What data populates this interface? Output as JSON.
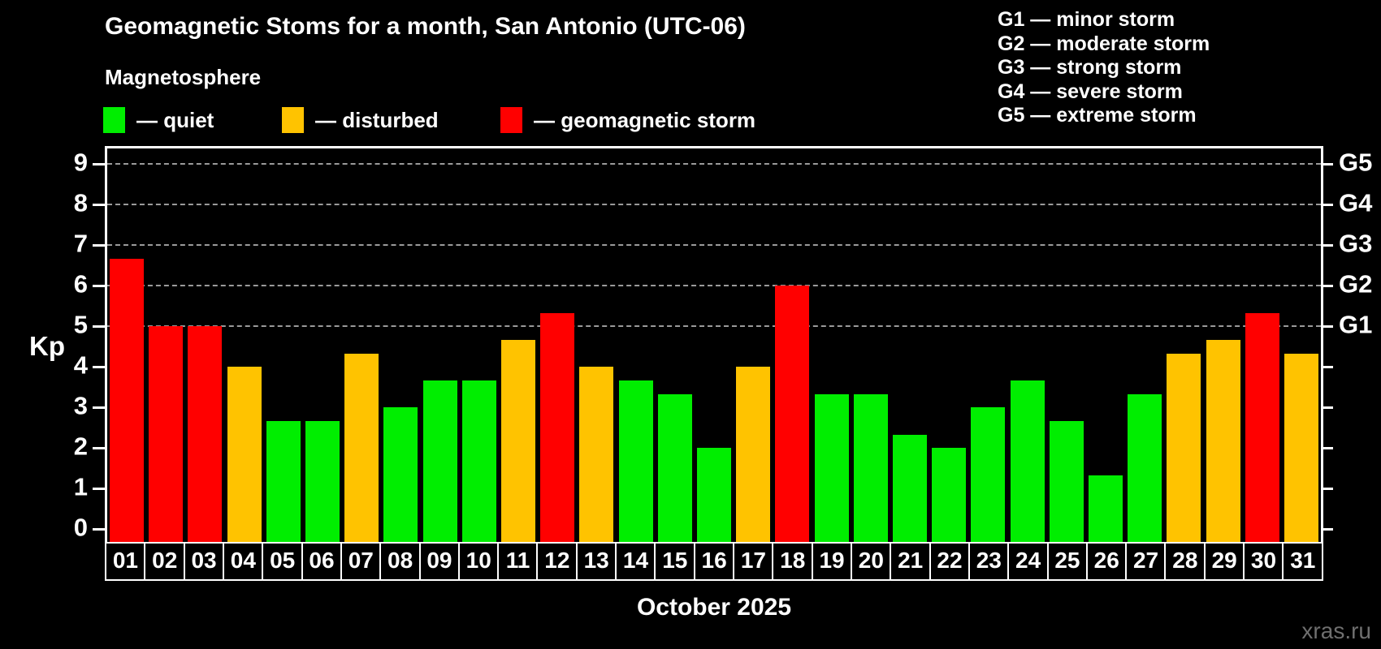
{
  "header": {
    "title": "Geomagnetic Stoms for a month, San Antonio (UTC-06)"
  },
  "legend": {
    "title": "Magnetosphere",
    "items": [
      {
        "label": "— quiet",
        "status": "quiet",
        "color": "#00ee00"
      },
      {
        "label": "— disturbed",
        "status": "disturbed",
        "color": "#ffc300"
      },
      {
        "label": "— geomagnetic storm",
        "status": "storm",
        "color": "#ff0000"
      }
    ]
  },
  "storm_scale_legend": {
    "lines": [
      "G1 — minor storm",
      "G2 — moderate storm",
      "G3 — strong storm",
      "G4 — severe storm",
      "G5 — extreme storm"
    ]
  },
  "axes": {
    "y_label": "Kp",
    "y_ticks": [
      0,
      1,
      2,
      3,
      4,
      5,
      6,
      7,
      8,
      9
    ],
    "gridlines_at": [
      5,
      6,
      7,
      8,
      9
    ],
    "right_labels": [
      {
        "label": "G1",
        "kp": 5
      },
      {
        "label": "G2",
        "kp": 6
      },
      {
        "label": "G3",
        "kp": 7
      },
      {
        "label": "G4",
        "kp": 8
      },
      {
        "label": "G5",
        "kp": 9
      }
    ],
    "x_month_label": "October 2025"
  },
  "watermark": "xras.ru",
  "chart_data": {
    "type": "bar",
    "title": "Geomagnetic Stoms for a month, San Antonio (UTC-06)",
    "xlabel": "October 2025",
    "ylabel": "Kp",
    "ylim": [
      -0.34,
      9.4
    ],
    "grid": "dashed horizontal at Kp 5-9 only",
    "legend_position": "top",
    "categories": [
      "01",
      "02",
      "03",
      "04",
      "05",
      "06",
      "07",
      "08",
      "09",
      "10",
      "11",
      "12",
      "13",
      "14",
      "15",
      "16",
      "17",
      "18",
      "19",
      "20",
      "21",
      "22",
      "23",
      "24",
      "25",
      "26",
      "27",
      "28",
      "29",
      "30",
      "31"
    ],
    "values": [
      6.67,
      5.0,
      5.0,
      4.0,
      2.67,
      2.67,
      4.33,
      3.0,
      3.67,
      3.67,
      4.67,
      5.33,
      4.0,
      3.67,
      3.33,
      2.0,
      4.0,
      6.0,
      3.33,
      3.33,
      2.33,
      2.0,
      3.0,
      3.67,
      2.67,
      1.33,
      3.33,
      4.33,
      4.67,
      5.33,
      4.33
    ],
    "statuses": [
      "storm",
      "storm",
      "storm",
      "disturbed",
      "quiet",
      "quiet",
      "disturbed",
      "quiet",
      "quiet",
      "quiet",
      "disturbed",
      "storm",
      "disturbed",
      "quiet",
      "quiet",
      "quiet",
      "disturbed",
      "storm",
      "quiet",
      "quiet",
      "quiet",
      "quiet",
      "quiet",
      "quiet",
      "quiet",
      "quiet",
      "quiet",
      "disturbed",
      "disturbed",
      "storm",
      "disturbed"
    ],
    "status_colors": {
      "quiet": "#00ee00",
      "disturbed": "#ffc300",
      "storm": "#ff0000"
    },
    "thresholds": {
      "disturbed_min_kp": 4,
      "storm_min_kp": 5
    }
  }
}
